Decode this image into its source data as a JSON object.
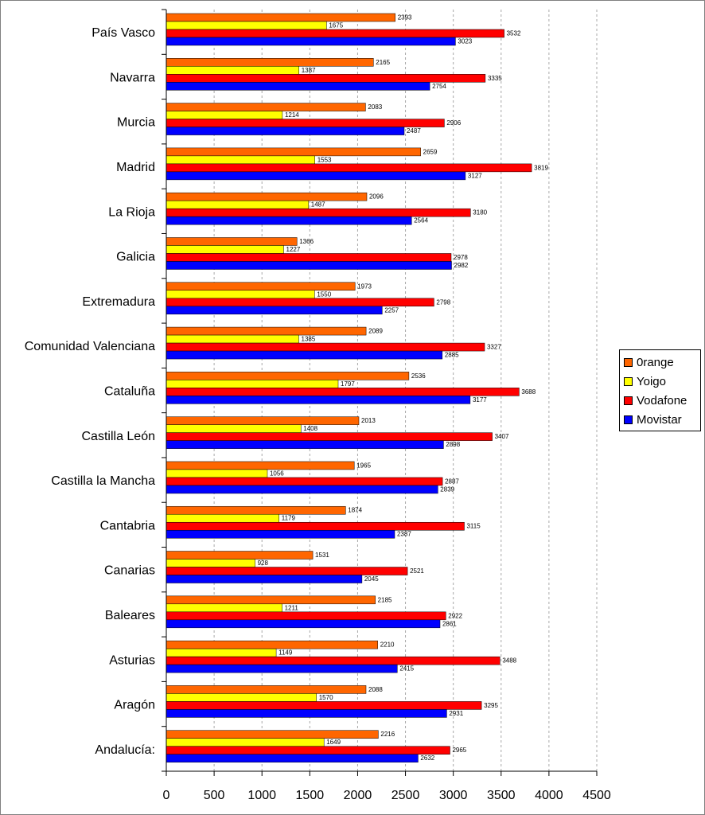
{
  "chart_data": {
    "type": "bar",
    "orientation": "horizontal",
    "title": "",
    "xlabel": "",
    "ylabel": "",
    "xlim": [
      0,
      4500
    ],
    "x_ticks": [
      "0",
      "500",
      "1000",
      "1500",
      "2000",
      "2500",
      "3000",
      "3500",
      "4000",
      "4500"
    ],
    "grid": "vertical dashed",
    "legend_position": "right",
    "categories": [
      "País Vasco",
      "Navarra",
      "Murcia",
      "Madrid",
      "La Rioja",
      "Galicia",
      "Extremadura",
      "Comunidad Valenciana",
      "Cataluña",
      "Castilla León",
      "Castilla la Mancha",
      "Cantabria",
      "Canarias",
      "Baleares",
      "Asturias",
      "Aragón",
      "Andalucía:"
    ],
    "series": [
      {
        "name": "0range",
        "color": "#FF6600",
        "values": [
          2393,
          2165,
          2083,
          2659,
          2096,
          1366,
          1973,
          2089,
          2536,
          2013,
          1965,
          1874,
          1531,
          2185,
          2210,
          2088,
          2216
        ]
      },
      {
        "name": "Yoigo",
        "color": "#FFFF00",
        "values": [
          1675,
          1387,
          1214,
          1553,
          1487,
          1227,
          1550,
          1385,
          1797,
          1408,
          1056,
          1179,
          928,
          1211,
          1149,
          1570,
          1649
        ]
      },
      {
        "name": "Vodafone",
        "color": "#FF0000",
        "values": [
          3532,
          3335,
          2906,
          3819,
          3180,
          2978,
          2798,
          3327,
          3688,
          3407,
          2887,
          3115,
          2521,
          2922,
          3488,
          3295,
          2965
        ]
      },
      {
        "name": "Movistar",
        "color": "#0000FF",
        "values": [
          3023,
          2754,
          2487,
          3127,
          2564,
          2982,
          2257,
          2885,
          3177,
          2898,
          2839,
          2387,
          2045,
          2861,
          2415,
          2931,
          2632
        ]
      }
    ]
  }
}
